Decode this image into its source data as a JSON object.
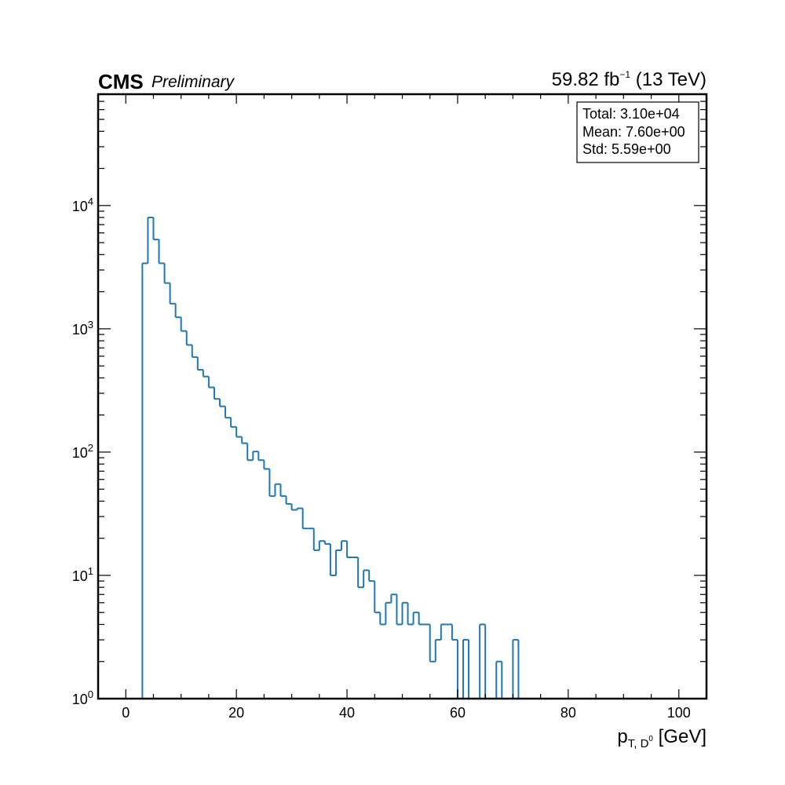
{
  "header": {
    "experiment": "CMS",
    "status": "Preliminary",
    "lumi": "59.82 fb",
    "lumi_exp": "−1",
    "energy": " (13 TeV)"
  },
  "stats_box": {
    "total": "Total: 3.10e+04",
    "mean": "Mean: 7.60e+00",
    "std": "Std: 5.59e+00"
  },
  "colors": {
    "histogram": "#1f77b4",
    "axes": "#000000"
  },
  "chart_data": {
    "type": "histogram",
    "xlabel_main": "p",
    "xlabel_sub": "T, D",
    "xlabel_sup": "0",
    "xlabel_unit": " [GeV]",
    "ylabel": "",
    "xlim": [
      -5,
      105
    ],
    "ylim": [
      1,
      80000
    ],
    "yscale": "log",
    "grid": false,
    "x_ticks": [
      "0",
      "20",
      "40",
      "60",
      "80",
      "100"
    ],
    "y_ticks": [
      {
        "base": "10",
        "exp": "0"
      },
      {
        "base": "10",
        "exp": "1"
      },
      {
        "base": "10",
        "exp": "2"
      },
      {
        "base": "10",
        "exp": "3"
      },
      {
        "base": "10",
        "exp": "4"
      }
    ],
    "bin_width": 1,
    "bin_start": 3,
    "counts": [
      3400,
      8000,
      5300,
      3400,
      2350,
      1600,
      1240,
      960,
      740,
      590,
      465,
      410,
      335,
      270,
      235,
      190,
      160,
      133,
      118,
      86,
      101,
      86,
      73,
      44,
      55,
      44,
      38,
      34,
      35,
      24,
      24,
      16,
      19,
      18,
      10,
      16,
      19,
      14,
      14,
      8,
      11,
      9,
      5,
      4,
      6,
      7,
      4,
      6,
      4,
      5,
      4,
      4,
      2,
      3,
      4,
      4,
      3,
      1,
      3,
      0,
      0,
      4,
      0,
      0,
      2,
      0,
      0,
      3,
      0
    ]
  }
}
